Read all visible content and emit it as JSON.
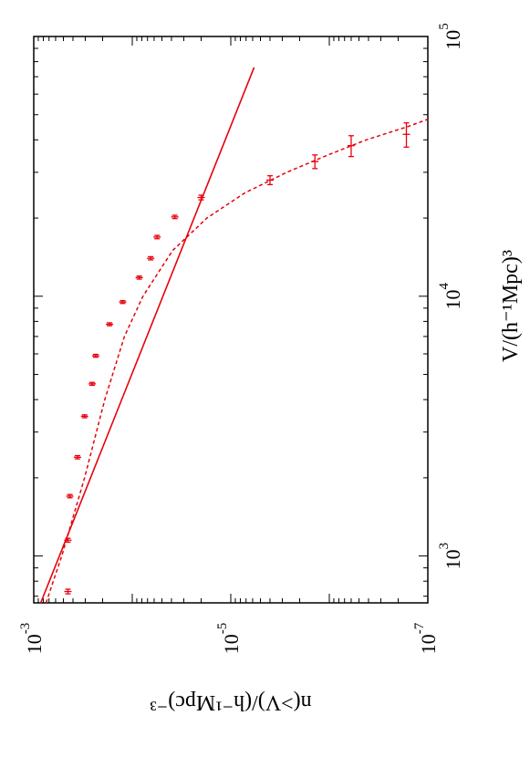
{
  "chart_data": {
    "type": "scatter",
    "title": "",
    "xlabel": "V/(h⁻¹Mpc)³",
    "ylabel": "n(>V)/(h⁻¹Mpc)⁻³",
    "x_scale": "log",
    "y_scale": "log",
    "xlim": [
      660,
      100000
    ],
    "ylim": [
      1e-07,
      0.001
    ],
    "x_ticks": [
      {
        "value": 1000,
        "base": "10",
        "exp": "3"
      },
      {
        "value": 10000,
        "base": "10",
        "exp": "4"
      },
      {
        "value": 100000,
        "base": "10",
        "exp": "5"
      }
    ],
    "y_ticks": [
      {
        "value": 0.001,
        "base": "10",
        "exp": "-3"
      },
      {
        "value": 1e-05,
        "base": "10",
        "exp": "-5"
      },
      {
        "value": 1e-07,
        "base": "10",
        "exp": "-7"
      }
    ],
    "orientation": "rotated 90 degrees clockwise",
    "colors": {
      "series": "#e8000b",
      "axes": "#000000"
    },
    "series": [
      {
        "style": "points-with-x-errorbars",
        "points": [
          {
            "x": 730,
            "y": 0.00045,
            "xerr": 15
          },
          {
            "x": 1150,
            "y": 0.00045,
            "xerr": 20
          },
          {
            "x": 1700,
            "y": 0.00043,
            "xerr": 25
          },
          {
            "x": 2400,
            "y": 0.00036,
            "xerr": 35
          },
          {
            "x": 3450,
            "y": 0.000305,
            "xerr": 45
          },
          {
            "x": 4600,
            "y": 0.000255,
            "xerr": 60
          },
          {
            "x": 5900,
            "y": 0.000235,
            "xerr": 75
          },
          {
            "x": 7800,
            "y": 0.00017,
            "xerr": 100
          },
          {
            "x": 9500,
            "y": 0.000125,
            "xerr": 120
          },
          {
            "x": 11800,
            "y": 8.5e-05,
            "xerr": 160
          },
          {
            "x": 14000,
            "y": 6.5e-05,
            "xerr": 200
          },
          {
            "x": 16900,
            "y": 5.6e-05,
            "xerr": 250
          },
          {
            "x": 20200,
            "y": 3.7e-05,
            "xerr": 300
          },
          {
            "x": 24000,
            "y": 2e-05,
            "xerr": 500
          },
          {
            "x": 28000,
            "y": 4e-06,
            "xerr": 1100
          },
          {
            "x": 33000,
            "y": 1.4e-06,
            "xerr": 2000
          },
          {
            "x": 38000,
            "y": 6e-07,
            "xerr": 3500
          },
          {
            "x": 42000,
            "y": 1.65e-07,
            "xerr": 4500
          }
        ]
      },
      {
        "style": "solid-line",
        "x": [
          660,
          76000
        ],
        "y": [
          0.00085,
          5.8e-06
        ]
      },
      {
        "style": "dashed-line",
        "x": [
          660,
          1000,
          2000,
          4000,
          7000,
          10000,
          15000,
          20000,
          25000,
          30000,
          35000,
          40000,
          45000,
          48000
        ],
        "y": [
          0.00075,
          0.00052,
          0.000305,
          0.00019,
          0.00012,
          7.8e-05,
          3.9e-05,
          1.75e-05,
          7.2e-06,
          2.7e-06,
          1.03e-06,
          4.2e-07,
          1.6e-07,
          1e-07
        ]
      }
    ]
  }
}
